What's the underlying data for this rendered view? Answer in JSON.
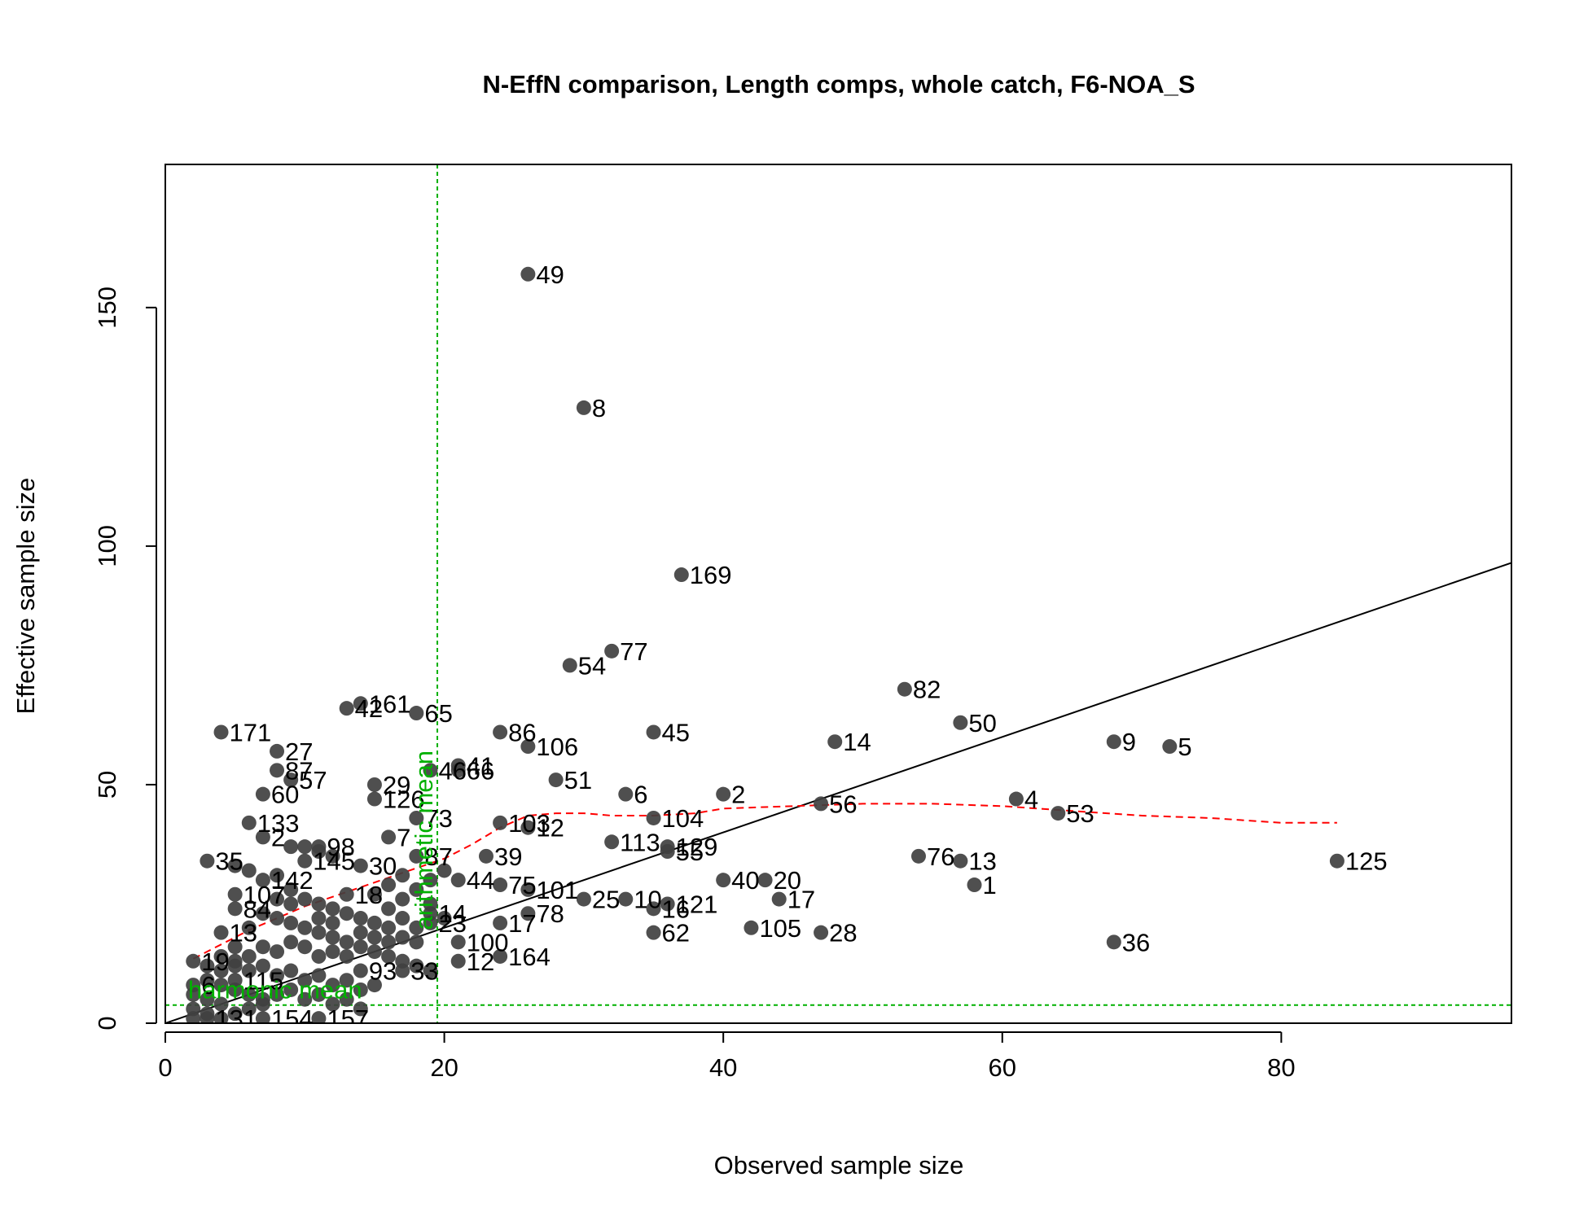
{
  "chart_data": {
    "type": "scatter",
    "title": "N-EffN comparison, Length comps, whole catch, F6-NOA_S",
    "xlabel": "Observed sample size",
    "ylabel": "Effective sample size",
    "xlim": [
      0,
      96.5
    ],
    "ylim": [
      0,
      180
    ],
    "x_ticks": [
      "0",
      "20",
      "40",
      "60",
      "80"
    ],
    "y_ticks": [
      "0",
      "50",
      "100",
      "150"
    ],
    "grid": false,
    "point_color": "#404040",
    "points": [
      {
        "label": "49",
        "x": 26,
        "y": 157
      },
      {
        "label": "8",
        "x": 30,
        "y": 129
      },
      {
        "label": "169",
        "x": 37,
        "y": 94
      },
      {
        "label": "77",
        "x": 32,
        "y": 78
      },
      {
        "label": "54",
        "x": 29,
        "y": 75
      },
      {
        "label": "82",
        "x": 53,
        "y": 70
      },
      {
        "label": "161",
        "x": 14,
        "y": 67
      },
      {
        "label": "42",
        "x": 13,
        "y": 66
      },
      {
        "label": "65",
        "x": 18,
        "y": 65
      },
      {
        "label": "50",
        "x": 57,
        "y": 63
      },
      {
        "label": "171",
        "x": 4,
        "y": 61
      },
      {
        "label": "45",
        "x": 35,
        "y": 61
      },
      {
        "label": "86",
        "x": 24,
        "y": 61
      },
      {
        "label": "14",
        "x": 48,
        "y": 59
      },
      {
        "label": "9",
        "x": 68,
        "y": 59
      },
      {
        "label": "5",
        "x": 72,
        "y": 58
      },
      {
        "label": "106",
        "x": 26,
        "y": 58
      },
      {
        "label": "27",
        "x": 8,
        "y": 57
      },
      {
        "label": "41",
        "x": 21,
        "y": 54
      },
      {
        "label": "46",
        "x": 19,
        "y": 53
      },
      {
        "label": "66",
        "x": 21,
        "y": 53
      },
      {
        "label": "87",
        "x": 8,
        "y": 53
      },
      {
        "label": "57",
        "x": 9,
        "y": 51
      },
      {
        "label": "51",
        "x": 28,
        "y": 51
      },
      {
        "label": "29",
        "x": 15,
        "y": 50
      },
      {
        "label": "60",
        "x": 7,
        "y": 48
      },
      {
        "label": "6",
        "x": 33,
        "y": 48
      },
      {
        "label": "2",
        "x": 40,
        "y": 48
      },
      {
        "label": "126",
        "x": 15,
        "y": 47
      },
      {
        "label": "4",
        "x": 61,
        "y": 47
      },
      {
        "label": "56",
        "x": 47,
        "y": 46
      },
      {
        "label": "53",
        "x": 64,
        "y": 44
      },
      {
        "label": "73",
        "x": 18,
        "y": 43
      },
      {
        "label": "104",
        "x": 35,
        "y": 43
      },
      {
        "label": "103",
        "x": 24,
        "y": 42
      },
      {
        "label": "133",
        "x": 6,
        "y": 42
      },
      {
        "label": "12",
        "x": 26,
        "y": 41
      },
      {
        "label": "7",
        "x": 16,
        "y": 39
      },
      {
        "label": "2",
        "x": 7,
        "y": 39
      },
      {
        "label": "113",
        "x": 32,
        "y": 38
      },
      {
        "label": "129",
        "x": 36,
        "y": 37
      },
      {
        "label": "98",
        "x": 11,
        "y": 37
      },
      {
        "label": "55",
        "x": 36,
        "y": 36
      },
      {
        "label": "87",
        "x": 18,
        "y": 35
      },
      {
        "label": "39",
        "x": 23,
        "y": 35
      },
      {
        "label": "76",
        "x": 54,
        "y": 35
      },
      {
        "label": "125",
        "x": 84,
        "y": 34
      },
      {
        "label": "35",
        "x": 3,
        "y": 34
      },
      {
        "label": "13",
        "x": 57,
        "y": 34
      },
      {
        "label": "145",
        "x": 10,
        "y": 34
      },
      {
        "label": "30",
        "x": 14,
        "y": 33
      },
      {
        "label": "40",
        "x": 40,
        "y": 30
      },
      {
        "label": "20",
        "x": 43,
        "y": 30
      },
      {
        "label": "142",
        "x": 7,
        "y": 30
      },
      {
        "label": "44",
        "x": 21,
        "y": 30
      },
      {
        "label": "75",
        "x": 24,
        "y": 29
      },
      {
        "label": "101",
        "x": 26,
        "y": 28
      },
      {
        "label": "1",
        "x": 58,
        "y": 29
      },
      {
        "label": "18",
        "x": 13,
        "y": 27
      },
      {
        "label": "107",
        "x": 5,
        "y": 27
      },
      {
        "label": "25",
        "x": 30,
        "y": 26
      },
      {
        "label": "10",
        "x": 33,
        "y": 26
      },
      {
        "label": "17",
        "x": 44,
        "y": 26
      },
      {
        "label": "121",
        "x": 36,
        "y": 25
      },
      {
        "label": "16",
        "x": 35,
        "y": 24
      },
      {
        "label": "84",
        "x": 5,
        "y": 24
      },
      {
        "label": "14",
        "x": 19,
        "y": 23
      },
      {
        "label": "78",
        "x": 26,
        "y": 23
      },
      {
        "label": "23",
        "x": 19,
        "y": 21
      },
      {
        "label": "17",
        "x": 24,
        "y": 21
      },
      {
        "label": "105",
        "x": 42,
        "y": 20
      },
      {
        "label": "28",
        "x": 47,
        "y": 19
      },
      {
        "label": "62",
        "x": 35,
        "y": 19
      },
      {
        "label": "13",
        "x": 4,
        "y": 19
      },
      {
        "label": "100",
        "x": 21,
        "y": 17
      },
      {
        "label": "36",
        "x": 68,
        "y": 17
      },
      {
        "label": "164",
        "x": 24,
        "y": 14
      },
      {
        "label": "12",
        "x": 21,
        "y": 13
      },
      {
        "label": "19",
        "x": 2,
        "y": 13
      },
      {
        "label": "33",
        "x": 17,
        "y": 11
      },
      {
        "label": "93",
        "x": 14,
        "y": 11
      },
      {
        "label": "115",
        "x": 5,
        "y": 9
      },
      {
        "label": "6",
        "x": 2,
        "y": 8
      },
      {
        "label": "154",
        "x": 7,
        "y": 1
      },
      {
        "label": "157",
        "x": 11,
        "y": 1
      },
      {
        "label": "131",
        "x": 3,
        "y": 1
      }
    ],
    "points_unlabeled": [
      [
        5,
        33
      ],
      [
        9,
        37
      ],
      [
        10,
        37
      ],
      [
        11,
        36
      ],
      [
        12,
        35
      ],
      [
        6,
        32
      ],
      [
        8,
        31
      ],
      [
        9,
        28
      ],
      [
        10,
        26
      ],
      [
        11,
        25
      ],
      [
        12,
        24
      ],
      [
        14,
        22
      ],
      [
        15,
        21
      ],
      [
        16,
        20
      ],
      [
        17,
        18
      ],
      [
        18,
        17
      ],
      [
        8,
        22
      ],
      [
        9,
        21
      ],
      [
        10,
        20
      ],
      [
        11,
        19
      ],
      [
        12,
        18
      ],
      [
        13,
        17
      ],
      [
        14,
        16
      ],
      [
        15,
        15
      ],
      [
        16,
        14
      ],
      [
        17,
        13
      ],
      [
        18,
        12
      ],
      [
        19,
        11
      ],
      [
        3,
        12
      ],
      [
        4,
        11
      ],
      [
        5,
        12
      ],
      [
        6,
        11
      ],
      [
        7,
        12
      ],
      [
        8,
        10
      ],
      [
        9,
        11
      ],
      [
        10,
        9
      ],
      [
        11,
        10
      ],
      [
        12,
        8
      ],
      [
        13,
        9
      ],
      [
        14,
        7
      ],
      [
        15,
        8
      ],
      [
        3,
        9
      ],
      [
        4,
        8
      ],
      [
        5,
        7
      ],
      [
        6,
        6
      ],
      [
        7,
        5
      ],
      [
        2,
        6
      ],
      [
        3,
        5
      ],
      [
        4,
        4
      ],
      [
        2,
        3
      ],
      [
        3,
        2
      ],
      [
        4,
        1
      ],
      [
        2,
        1
      ],
      [
        5,
        2
      ],
      [
        6,
        3
      ],
      [
        7,
        4
      ],
      [
        8,
        6
      ],
      [
        9,
        7
      ],
      [
        10,
        5
      ],
      [
        11,
        6
      ],
      [
        12,
        4
      ],
      [
        13,
        5
      ],
      [
        14,
        3
      ],
      [
        16,
        24
      ],
      [
        17,
        26
      ],
      [
        18,
        28
      ],
      [
        19,
        30
      ],
      [
        20,
        32
      ],
      [
        15,
        27
      ],
      [
        16,
        29
      ],
      [
        17,
        31
      ],
      [
        13,
        23
      ],
      [
        12,
        21
      ],
      [
        11,
        22
      ],
      [
        9,
        25
      ],
      [
        8,
        26
      ],
      [
        7,
        23
      ],
      [
        6,
        20
      ],
      [
        5,
        16
      ],
      [
        4,
        14
      ],
      [
        19,
        25
      ],
      [
        20,
        22
      ],
      [
        18,
        20
      ],
      [
        17,
        22
      ],
      [
        16,
        17
      ],
      [
        15,
        18
      ],
      [
        14,
        19
      ],
      [
        13,
        14
      ],
      [
        12,
        15
      ],
      [
        11,
        14
      ],
      [
        10,
        16
      ],
      [
        9,
        17
      ],
      [
        8,
        15
      ],
      [
        7,
        16
      ],
      [
        6,
        14
      ],
      [
        5,
        13
      ]
    ],
    "reference_line": {
      "label": "",
      "slope": 1,
      "intercept": 0,
      "x_range": [
        0,
        96.5
      ],
      "color": "#000000"
    },
    "smoother": {
      "color": "#ff0000",
      "x": [
        2,
        4,
        6,
        8,
        10,
        12,
        14,
        16,
        18,
        20,
        22,
        24,
        26,
        28,
        30,
        32,
        35,
        38,
        40,
        45,
        50,
        55,
        60,
        65,
        70,
        75,
        80,
        84
      ],
      "y": [
        13.5,
        16.5,
        19.5,
        22,
        24.5,
        26.5,
        28.5,
        30.5,
        32.5,
        34.5,
        37.5,
        41,
        43.5,
        44,
        44,
        43.5,
        43.5,
        44,
        45,
        45.5,
        46,
        46,
        45.5,
        44.5,
        43.5,
        43,
        42,
        42
      ]
    },
    "arithmetic_mean": {
      "label": "arithmetic mean",
      "value": 19.5,
      "color": "#00b000"
    },
    "harmonic_mean": {
      "label": "harmonic mean",
      "value": 3.8,
      "color": "#00b000"
    }
  }
}
